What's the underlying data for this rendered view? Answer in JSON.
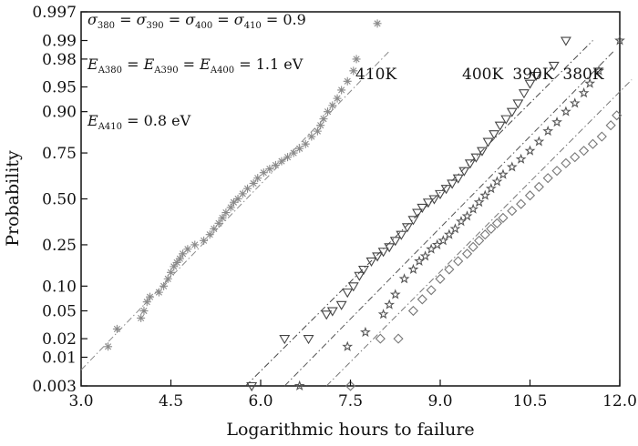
{
  "chart_data": {
    "type": "scatter",
    "title": "",
    "xlabel": "Logarithmic hours to failure",
    "ylabel": "Probability",
    "xlim": [
      3.0,
      12.0
    ],
    "ylim": [
      0.003,
      0.997
    ],
    "y_scale": "normal-probability",
    "x_ticks": [
      "3.0",
      "4.5",
      "6.0",
      "7.5",
      "9.0",
      "10.5",
      "12.0"
    ],
    "y_ticks": [
      "0.003",
      "0.01",
      "0.02",
      "0.05",
      "0.10",
      "0.25",
      "0.50",
      "0.75",
      "0.90",
      "0.95",
      "0.98",
      "0.99",
      "0.997"
    ],
    "grid": false,
    "annotations": {
      "sigma": {
        "s1": "σ",
        "sub1": "380",
        "eq1": " = ",
        "s2": "σ",
        "sub2": "390",
        "eq2": " = ",
        "s3": "σ",
        "sub3": "400",
        "eq3": " = ",
        "s4": "σ",
        "sub4": "410",
        "tail": " = 0.9"
      },
      "ea": {
        "e1": "E",
        "sub1": "A380",
        "eq1": " = ",
        "e2": "E",
        "sub2": "A390",
        "eq2": " = ",
        "e3": "E",
        "sub3": "A400",
        "tail": " = 1.1 eV"
      },
      "ea410": {
        "e": "E",
        "sub": "A410",
        "tail": " = 0.8 eV"
      }
    },
    "series": [
      {
        "name": "410K",
        "marker": "asterisk",
        "color": "#8a8a8a",
        "fit_line": {
          "x": [
            3.0,
            8.15
          ],
          "y": [
            0.006,
            0.985
          ]
        },
        "points": [
          [
            3.45,
            0.015
          ],
          [
            3.6,
            0.028
          ],
          [
            4.0,
            0.04
          ],
          [
            4.05,
            0.05
          ],
          [
            4.1,
            0.065
          ],
          [
            4.15,
            0.075
          ],
          [
            4.3,
            0.085
          ],
          [
            4.38,
            0.1
          ],
          [
            4.45,
            0.12
          ],
          [
            4.5,
            0.14
          ],
          [
            4.55,
            0.16
          ],
          [
            4.6,
            0.175
          ],
          [
            4.65,
            0.19
          ],
          [
            4.7,
            0.21
          ],
          [
            4.78,
            0.23
          ],
          [
            4.9,
            0.25
          ],
          [
            5.05,
            0.27
          ],
          [
            5.15,
            0.3
          ],
          [
            5.22,
            0.33
          ],
          [
            5.3,
            0.36
          ],
          [
            5.36,
            0.39
          ],
          [
            5.42,
            0.42
          ],
          [
            5.5,
            0.45
          ],
          [
            5.55,
            0.48
          ],
          [
            5.62,
            0.5
          ],
          [
            5.7,
            0.53
          ],
          [
            5.78,
            0.56
          ],
          [
            5.88,
            0.59
          ],
          [
            5.95,
            0.62
          ],
          [
            6.05,
            0.65
          ],
          [
            6.15,
            0.67
          ],
          [
            6.25,
            0.69
          ],
          [
            6.35,
            0.71
          ],
          [
            6.45,
            0.73
          ],
          [
            6.55,
            0.75
          ],
          [
            6.65,
            0.77
          ],
          [
            6.75,
            0.79
          ],
          [
            6.85,
            0.82
          ],
          [
            6.95,
            0.84
          ],
          [
            7.0,
            0.86
          ],
          [
            7.05,
            0.88
          ],
          [
            7.12,
            0.9
          ],
          [
            7.2,
            0.915
          ],
          [
            7.28,
            0.93
          ],
          [
            7.35,
            0.945
          ],
          [
            7.45,
            0.958
          ],
          [
            7.55,
            0.97
          ],
          [
            7.6,
            0.98
          ],
          [
            7.95,
            0.995
          ]
        ]
      },
      {
        "name": "400K",
        "marker": "triangle-down",
        "color": "#444444",
        "fit_line": {
          "x": [
            5.75,
            11.55
          ],
          "y": [
            0.003,
            0.99
          ]
        },
        "points": [
          [
            5.85,
            0.003
          ],
          [
            6.4,
            0.02
          ],
          [
            6.8,
            0.02
          ],
          [
            7.1,
            0.045
          ],
          [
            7.2,
            0.05
          ],
          [
            7.35,
            0.06
          ],
          [
            7.45,
            0.085
          ],
          [
            7.55,
            0.1
          ],
          [
            7.65,
            0.13
          ],
          [
            7.72,
            0.15
          ],
          [
            7.85,
            0.18
          ],
          [
            7.95,
            0.2
          ],
          [
            8.05,
            0.22
          ],
          [
            8.15,
            0.24
          ],
          [
            8.25,
            0.27
          ],
          [
            8.35,
            0.3
          ],
          [
            8.45,
            0.34
          ],
          [
            8.55,
            0.38
          ],
          [
            8.62,
            0.42
          ],
          [
            8.7,
            0.45
          ],
          [
            8.8,
            0.48
          ],
          [
            8.9,
            0.5
          ],
          [
            9.0,
            0.53
          ],
          [
            9.1,
            0.56
          ],
          [
            9.2,
            0.59
          ],
          [
            9.3,
            0.62
          ],
          [
            9.4,
            0.66
          ],
          [
            9.5,
            0.7
          ],
          [
            9.6,
            0.73
          ],
          [
            9.7,
            0.76
          ],
          [
            9.8,
            0.8
          ],
          [
            9.9,
            0.83
          ],
          [
            10.0,
            0.86
          ],
          [
            10.1,
            0.88
          ],
          [
            10.2,
            0.9
          ],
          [
            10.3,
            0.92
          ],
          [
            10.4,
            0.94
          ],
          [
            10.5,
            0.955
          ],
          [
            10.6,
            0.965
          ],
          [
            10.9,
            0.975
          ],
          [
            11.1,
            0.99
          ]
        ]
      },
      {
        "name": "390K",
        "marker": "star",
        "color": "#555555",
        "fit_line": {
          "x": [
            6.4,
            11.9
          ],
          "y": [
            0.003,
            0.985
          ]
        },
        "points": [
          [
            6.65,
            0.003
          ],
          [
            7.45,
            0.015
          ],
          [
            7.75,
            0.025
          ],
          [
            8.05,
            0.045
          ],
          [
            8.15,
            0.06
          ],
          [
            8.25,
            0.08
          ],
          [
            8.4,
            0.12
          ],
          [
            8.55,
            0.15
          ],
          [
            8.65,
            0.18
          ],
          [
            8.75,
            0.2
          ],
          [
            8.85,
            0.23
          ],
          [
            8.95,
            0.25
          ],
          [
            9.05,
            0.27
          ],
          [
            9.15,
            0.3
          ],
          [
            9.25,
            0.33
          ],
          [
            9.35,
            0.37
          ],
          [
            9.45,
            0.4
          ],
          [
            9.55,
            0.44
          ],
          [
            9.65,
            0.48
          ],
          [
            9.75,
            0.52
          ],
          [
            9.85,
            0.56
          ],
          [
            9.95,
            0.6
          ],
          [
            10.05,
            0.64
          ],
          [
            10.2,
            0.68
          ],
          [
            10.35,
            0.72
          ],
          [
            10.5,
            0.76
          ],
          [
            10.65,
            0.8
          ],
          [
            10.8,
            0.84
          ],
          [
            10.95,
            0.87
          ],
          [
            11.1,
            0.9
          ],
          [
            11.25,
            0.92
          ],
          [
            11.4,
            0.94
          ],
          [
            11.5,
            0.955
          ],
          [
            11.65,
            0.97
          ],
          [
            12.0,
            0.99
          ]
        ]
      },
      {
        "name": "380K",
        "marker": "diamond",
        "color": "#777777",
        "fit_line": {
          "x": [
            7.1,
            12.2
          ],
          "y": [
            0.003,
            0.96
          ]
        },
        "points": [
          [
            7.5,
            0.003
          ],
          [
            8.0,
            0.02
          ],
          [
            8.3,
            0.02
          ],
          [
            8.55,
            0.05
          ],
          [
            8.7,
            0.07
          ],
          [
            8.85,
            0.09
          ],
          [
            9.0,
            0.12
          ],
          [
            9.15,
            0.15
          ],
          [
            9.3,
            0.18
          ],
          [
            9.45,
            0.21
          ],
          [
            9.55,
            0.24
          ],
          [
            9.65,
            0.27
          ],
          [
            9.75,
            0.3
          ],
          [
            9.85,
            0.33
          ],
          [
            9.95,
            0.36
          ],
          [
            10.05,
            0.39
          ],
          [
            10.2,
            0.43
          ],
          [
            10.35,
            0.47
          ],
          [
            10.5,
            0.52
          ],
          [
            10.65,
            0.57
          ],
          [
            10.8,
            0.62
          ],
          [
            10.95,
            0.66
          ],
          [
            11.1,
            0.7
          ],
          [
            11.25,
            0.73
          ],
          [
            11.4,
            0.76
          ],
          [
            11.55,
            0.79
          ],
          [
            11.7,
            0.82
          ],
          [
            11.85,
            0.86
          ],
          [
            11.95,
            0.89
          ]
        ]
      }
    ]
  }
}
